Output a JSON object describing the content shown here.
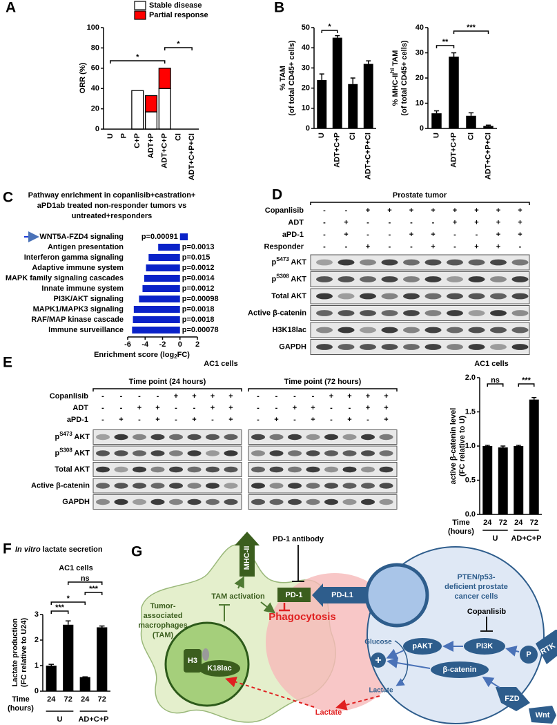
{
  "panel_labels": [
    "A",
    "B",
    "C",
    "D",
    "E",
    "F",
    "G"
  ],
  "chart_data": [
    {
      "type": "bar",
      "stacked": true,
      "categories": [
        "U",
        "P",
        "C+P",
        "ADT+P",
        "ADT+C+P",
        "CI",
        "ADT+C+P+CI"
      ],
      "series": [
        {
          "name": "Stable disease",
          "color": "#ffffff",
          "values": [
            0,
            0,
            38,
            17,
            40,
            0,
            0
          ]
        },
        {
          "name": "Partial response",
          "color": "#ff0000",
          "values": [
            0,
            0,
            0,
            16,
            20,
            0,
            0
          ]
        }
      ],
      "ylabel": [
        "ORR (%)"
      ],
      "ylim": [
        0,
        100
      ],
      "yticks": [
        0,
        20,
        40,
        60,
        80,
        100
      ],
      "annotations": [
        "*",
        "*"
      ]
    },
    {
      "type": "bar",
      "categories": [
        "U",
        "ADT+C+P",
        "CI",
        "ADT+C+P+CI"
      ],
      "values": [
        24,
        45,
        22,
        32
      ],
      "errors": [
        3,
        1,
        3,
        1.5
      ],
      "color": "#000000",
      "ylabel": [
        "% TAM",
        "(of total CD45+ cells)"
      ],
      "ylim": [
        0,
        50
      ],
      "yticks": [
        0,
        10,
        20,
        30,
        40,
        50
      ],
      "annotations": [
        "*"
      ]
    },
    {
      "type": "bar",
      "categories": [
        "U",
        "ADT+C+P",
        "CI",
        "ADT+C+P+CI"
      ],
      "values": [
        6,
        28.5,
        5,
        1
      ],
      "errors": [
        1,
        1.5,
        1.2,
        0.3
      ],
      "color": "#000000",
      "ylabel": [
        [
          {
            "text": "% MHC-II"
          },
          {
            "text": "hi",
            "style": "sup"
          },
          {
            "text": " TAM"
          }
        ],
        "(of total CD45+ cells)"
      ],
      "ylim": [
        0,
        40
      ],
      "yticks": [
        0,
        10,
        20,
        30,
        40
      ],
      "annotations": [
        "**",
        "***"
      ]
    },
    {
      "type": "barh",
      "title": [
        "Pathway enrichment in copanlisib+castration+",
        "aPD1ab treated non-responder tumors vs",
        "untreated+responders"
      ],
      "categories": [
        "WNT5A-FZD4 signaling",
        "Antigen presentation",
        "Interferon gamma signaling",
        "Adaptive immune system",
        "MAPK family signaling cascades",
        "Innate immune system",
        "PI3K/AKT signaling",
        "MAPK1/MAPK3 signaling",
        "RAF/MAP kinase cascade",
        "Immune surveillance"
      ],
      "values": [
        0.9,
        -2.5,
        -3.6,
        -3.9,
        -4.1,
        -4.3,
        -4.7,
        -5.3,
        -5.4,
        -5.5
      ],
      "annotations": [
        "p=0.00091",
        "p=0.0013",
        "p=0.015",
        "p=0.0012",
        "p=0.0014",
        "p=0.0012",
        "p=0.00098",
        "p=0.0018",
        "p=0.0018",
        "p=0.00078"
      ],
      "color": "#0a22c8",
      "xlabel": [
        {
          "text": "Enrichment score (log"
        },
        {
          "text": "2",
          "style": "sub"
        },
        {
          "text": "FC)"
        }
      ],
      "xlim": [
        -6,
        2
      ],
      "xticks": [
        -6,
        -4,
        -2,
        0,
        2
      ]
    },
    {
      "type": "bar",
      "title": "AC1 cells",
      "categories": [
        "24",
        "72",
        "24",
        "72"
      ],
      "groups": [
        "U",
        "AD+C+P"
      ],
      "values": [
        1,
        0.98,
        1,
        1.68
      ],
      "errors": [
        0.01,
        0.02,
        0.01,
        0.03
      ],
      "color": "#000000",
      "ylabel": [
        "active β-catenin level",
        "(FC relative to U)"
      ],
      "xlabel": [
        "Time",
        "(hours)"
      ],
      "ylim": [
        0,
        2
      ],
      "yticks": [
        {
          "value": 0,
          "label": "0.0"
        },
        0.5,
        {
          "value": 1,
          "label": "1.0"
        },
        1.5,
        {
          "value": 2,
          "label": "2.0"
        }
      ],
      "annotations": [
        "ns",
        "***"
      ]
    },
    {
      "type": "bar",
      "title": [
        {
          "text": "In vitro",
          "style": "it"
        },
        {
          "text": " lactate secretion"
        }
      ],
      "subtitle": "AC1 cells",
      "categories": [
        "24",
        "72",
        "24",
        "72"
      ],
      "groups": [
        "U",
        "AD+C+P"
      ],
      "values": [
        1.0,
        2.6,
        0.55,
        2.5
      ],
      "errors": [
        0.05,
        0.15,
        0.01,
        0.05
      ],
      "color": "#000000",
      "ylabel": [
        "Lactate production",
        "(FC relative to U24)"
      ],
      "xlabel": [
        "Time",
        "(hours)"
      ],
      "ylim": [
        0,
        3
      ],
      "yticks": [
        0,
        1,
        2,
        3
      ],
      "annotations": [
        "***",
        "*",
        "***",
        "ns"
      ]
    }
  ],
  "blots": {
    "D": {
      "title": "Prostate tumor",
      "conditions": [
        {
          "name": "Copanlisib",
          "lanes": [
            "-",
            "-",
            "+",
            "+",
            "+",
            "+",
            "+",
            "+",
            "+",
            "+"
          ]
        },
        {
          "name": "ADT",
          "lanes": [
            "-",
            "+",
            "-",
            "-",
            "-",
            "-",
            "+",
            "+",
            "+",
            "+"
          ]
        },
        {
          "name": "aPD-1",
          "lanes": [
            "-",
            "+",
            "-",
            "-",
            "+",
            "+",
            "-",
            "-",
            "+",
            "+"
          ]
        },
        {
          "name": "Responder",
          "lanes": [
            "-",
            "-",
            "+",
            "-",
            "-",
            "+",
            "-",
            "+",
            "+",
            "-"
          ]
        }
      ],
      "rows": [
        [
          {
            "text": "p"
          },
          {
            "text": "S473",
            "style": "sup"
          },
          {
            "text": " AKT"
          }
        ],
        [
          {
            "text": "p"
          },
          {
            "text": "S308",
            "style": "sup"
          },
          {
            "text": " AKT"
          }
        ],
        "Total AKT",
        "Active β-catenin",
        "H3K18lac",
        "GAPDH"
      ]
    },
    "E": {
      "title": "AC1 cells",
      "groups": [
        "Time point (24 hours)",
        "Time point (72 hours)"
      ],
      "conditions": [
        {
          "name": "Copanlisib",
          "lanes": [
            "-",
            "-",
            "-",
            "-",
            "+",
            "+",
            "+",
            "+",
            "-",
            "-",
            "-",
            "-",
            "+",
            "+",
            "+",
            "+"
          ]
        },
        {
          "name": "ADT",
          "lanes": [
            "-",
            "-",
            "+",
            "+",
            "-",
            "-",
            "+",
            "+",
            "-",
            "-",
            "+",
            "+",
            "-",
            "-",
            "+",
            "+"
          ]
        },
        {
          "name": "aPD-1",
          "lanes": [
            "-",
            "+",
            "-",
            "+",
            "-",
            "+",
            "-",
            "+",
            "-",
            "+",
            "-",
            "+",
            "-",
            "+",
            "-",
            "+"
          ]
        }
      ],
      "rows": [
        [
          {
            "text": "p"
          },
          {
            "text": "S473",
            "style": "sup"
          },
          {
            "text": " AKT"
          }
        ],
        [
          {
            "text": "p"
          },
          {
            "text": "S308",
            "style": "sup"
          },
          {
            "text": " AKT"
          }
        ],
        "Total AKT",
        "Active β-catenin",
        "GAPDH"
      ]
    }
  },
  "diagram": {
    "mhc": "MHC-II",
    "antibody": "PD-1 antibody",
    "tam": [
      "Tumor-",
      "associated",
      "macrophages",
      "(TAM)"
    ],
    "tam_activation": "TAM activation",
    "pd1": "PD-1",
    "pdl1": "PD-L1",
    "phagocytosis": "Phagocytosis",
    "h3": "H3",
    "k18lac": "K18lac",
    "lactate_out": "Lactate",
    "cancer": [
      "PTEN/p53-",
      "deficient prostate",
      "cancer cells"
    ],
    "copanlisib": "Copanlisib",
    "glucose": "Glucose",
    "plus": "+",
    "lactate_in": "Lactate",
    "pakt": "pAKT",
    "pi3k": "PI3K",
    "p": "P",
    "rtk": "RTK",
    "beta_catenin": "β-catenin",
    "fzd": "FZD",
    "wnt": "Wnt"
  }
}
